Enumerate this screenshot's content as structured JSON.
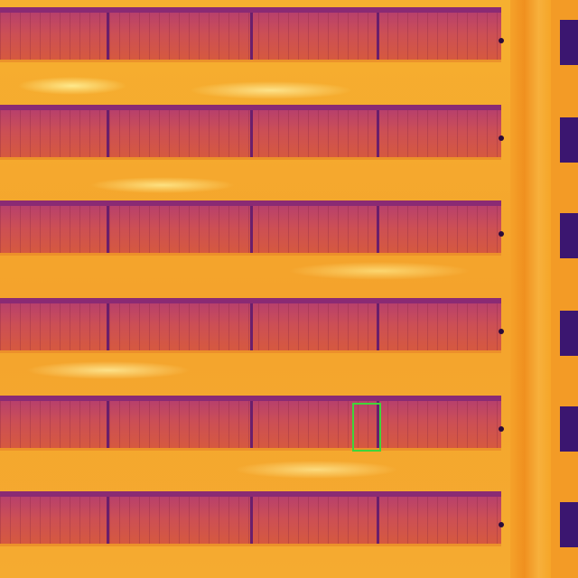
{
  "image": {
    "type": "thermal aerial view",
    "palette": [
      "#3b1670",
      "#b8406c",
      "#d6593f",
      "#f4a32c",
      "#fff3a0"
    ],
    "panel_rows": 6,
    "detection_box_color": "#3fd43a",
    "detections": 1
  }
}
